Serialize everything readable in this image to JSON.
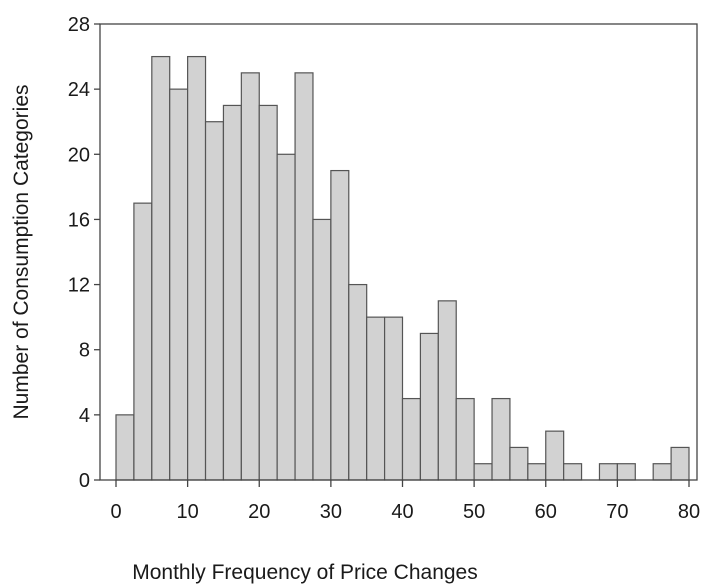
{
  "chart_data": {
    "type": "bar",
    "subtype": "histogram",
    "xlabel": "Monthly Frequency of Price Changes",
    "ylabel": "Number of Consumption Categories",
    "xlim": [
      0,
      80
    ],
    "ylim": [
      0,
      28
    ],
    "x_ticks": [
      0,
      10,
      20,
      30,
      40,
      50,
      60,
      70,
      80
    ],
    "y_ticks": [
      0,
      4,
      8,
      12,
      16,
      20,
      24,
      28
    ],
    "bin_width": 2.5,
    "bins": [
      {
        "start": 0.0,
        "value": 4
      },
      {
        "start": 2.5,
        "value": 17
      },
      {
        "start": 5.0,
        "value": 26
      },
      {
        "start": 7.5,
        "value": 24
      },
      {
        "start": 10.0,
        "value": 26
      },
      {
        "start": 12.5,
        "value": 22
      },
      {
        "start": 15.0,
        "value": 23
      },
      {
        "start": 17.5,
        "value": 25
      },
      {
        "start": 20.0,
        "value": 23
      },
      {
        "start": 22.5,
        "value": 20
      },
      {
        "start": 25.0,
        "value": 25
      },
      {
        "start": 27.5,
        "value": 16
      },
      {
        "start": 30.0,
        "value": 19
      },
      {
        "start": 32.5,
        "value": 12
      },
      {
        "start": 35.0,
        "value": 10
      },
      {
        "start": 37.5,
        "value": 10
      },
      {
        "start": 40.0,
        "value": 5
      },
      {
        "start": 42.5,
        "value": 9
      },
      {
        "start": 45.0,
        "value": 11
      },
      {
        "start": 47.5,
        "value": 5
      },
      {
        "start": 50.0,
        "value": 1
      },
      {
        "start": 52.5,
        "value": 5
      },
      {
        "start": 55.0,
        "value": 2
      },
      {
        "start": 57.5,
        "value": 1
      },
      {
        "start": 60.0,
        "value": 3
      },
      {
        "start": 62.5,
        "value": 1
      },
      {
        "start": 67.5,
        "value": 1
      },
      {
        "start": 70.0,
        "value": 1
      },
      {
        "start": 75.0,
        "value": 1
      },
      {
        "start": 77.5,
        "value": 2
      }
    ],
    "bar_color": "#d2d2d2",
    "bar_edge_color": "#555555",
    "grid": false,
    "legend": "none"
  }
}
